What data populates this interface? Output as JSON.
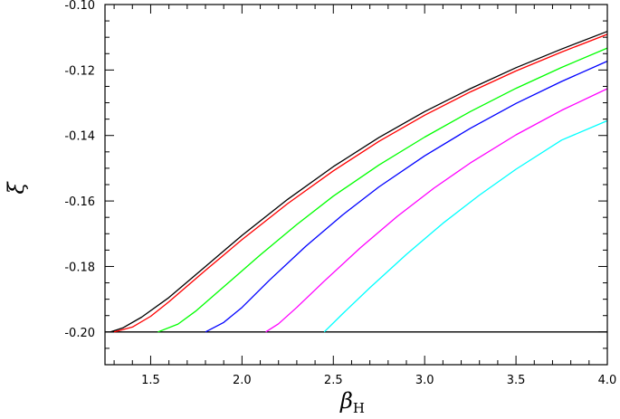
{
  "chart_data": {
    "type": "line",
    "xlabel": "β",
    "xlabel_sub": "H",
    "ylabel": "ξ",
    "xlim": [
      1.25,
      4.0
    ],
    "ylim": [
      -0.21,
      -0.1
    ],
    "xticks": [
      1.5,
      2.0,
      2.5,
      3.0,
      3.5,
      4.0
    ],
    "xtick_labels": [
      "1.5",
      "2.0",
      "2.5",
      "3.0",
      "3.5",
      "4.0"
    ],
    "yticks": [
      -0.2,
      -0.18,
      -0.16,
      -0.14,
      -0.12,
      -0.1
    ],
    "ytick_labels": [
      "-0.20",
      "-0.18",
      "-0.16",
      "-0.14",
      "-0.12",
      "-0.10"
    ],
    "grid": false,
    "legend": "none",
    "baseline": {
      "y": -0.2,
      "color": "#000000"
    },
    "series": [
      {
        "color": "#000000",
        "x": [
          1.28,
          1.35,
          1.45,
          1.6,
          1.8,
          2.0,
          2.25,
          2.5,
          2.75,
          3.0,
          3.25,
          3.5,
          3.75,
          4.0
        ],
        "y": [
          -0.2,
          -0.1987,
          -0.1955,
          -0.1895,
          -0.18,
          -0.1705,
          -0.1595,
          -0.1495,
          -0.1406,
          -0.1327,
          -0.1257,
          -0.1193,
          -0.1136,
          -0.1082
        ]
      },
      {
        "color": "#ff0000",
        "x": [
          1.3,
          1.4,
          1.5,
          1.6,
          1.8,
          2.0,
          2.25,
          2.5,
          2.75,
          3.0,
          3.25,
          3.5,
          3.75,
          4.0
        ],
        "y": [
          -0.2,
          -0.1985,
          -0.1952,
          -0.1908,
          -0.1812,
          -0.1718,
          -0.1608,
          -0.1508,
          -0.1418,
          -0.1338,
          -0.1267,
          -0.1203,
          -0.1145,
          -0.1091
        ]
      },
      {
        "color": "#00ff00",
        "x": [
          1.54,
          1.65,
          1.75,
          1.9,
          2.1,
          2.3,
          2.5,
          2.75,
          3.0,
          3.25,
          3.5,
          3.75,
          4.0
        ],
        "y": [
          -0.2,
          -0.1976,
          -0.1935,
          -0.1862,
          -0.1765,
          -0.1672,
          -0.1585,
          -0.149,
          -0.1405,
          -0.1327,
          -0.1256,
          -0.1192,
          -0.1133
        ]
      },
      {
        "color": "#0000ff",
        "x": [
          1.8,
          1.9,
          2.0,
          2.15,
          2.35,
          2.55,
          2.75,
          3.0,
          3.25,
          3.5,
          3.75,
          4.0
        ],
        "y": [
          -0.2,
          -0.1971,
          -0.1925,
          -0.1842,
          -0.1738,
          -0.1643,
          -0.1557,
          -0.1462,
          -0.1378,
          -0.1302,
          -0.1235,
          -0.1173
        ]
      },
      {
        "color": "#ff00ff",
        "x": [
          2.13,
          2.2,
          2.3,
          2.45,
          2.65,
          2.85,
          3.05,
          3.25,
          3.5,
          3.75,
          4.0
        ],
        "y": [
          -0.2,
          -0.1975,
          -0.1925,
          -0.1845,
          -0.1742,
          -0.1647,
          -0.1561,
          -0.1484,
          -0.1398,
          -0.1323,
          -0.1257
        ]
      },
      {
        "color": "#00ffff",
        "x": [
          2.45,
          2.55,
          2.7,
          2.9,
          3.1,
          3.3,
          3.5,
          3.75,
          4.0
        ],
        "y": [
          -0.2,
          -0.1945,
          -0.1865,
          -0.1763,
          -0.1668,
          -0.1582,
          -0.1503,
          -0.1414,
          -0.1355
        ]
      }
    ]
  }
}
